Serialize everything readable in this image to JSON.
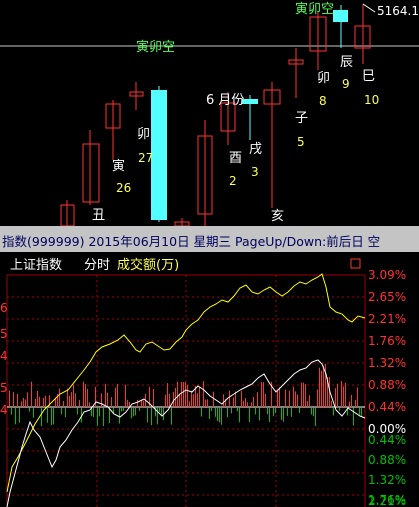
{
  "kline": {
    "price_label": "5164.1",
    "labels": {
      "top_yin_mao_kong": "寅卯空",
      "mid_yin_mao_kong": "寅卯空",
      "chou": "丑",
      "yin": "寅",
      "yin_num": "26",
      "mao_left": "卯",
      "mao_left_num": "27",
      "hai": "亥",
      "month6": "6 月份",
      "you": "酉",
      "you_num": "2",
      "xu": "戌",
      "xu_num": "3",
      "zi": "子",
      "zi_num": "5",
      "mao_right": "卯",
      "mao_right_num": "8",
      "chen": "辰",
      "chen_num": "9",
      "si": "巳",
      "si_num": "10"
    }
  },
  "infobar": {
    "text": "指数(999999) 2015年06月10日 星期三 PageUp/Down:前后日 空"
  },
  "intraday": {
    "index_name": "上证指数",
    "mode": "分时",
    "volume_label": "成交额(万)",
    "pct_labels_up": [
      "3.09%",
      "2.65%",
      "2.21%",
      "1.76%",
      "1.32%",
      "0.88%",
      "0.44%"
    ],
    "zero_label": "0.00%",
    "pct_labels_down": [
      "0.44%",
      "0.88%",
      "1.32%",
      "1.76%",
      "2.21%"
    ],
    "left_fragments": [
      "6",
      "5",
      "4",
      "5",
      "4"
    ]
  },
  "colors": {
    "up_red": "#ff3232",
    "down_cyan": "#54ffff",
    "down_green": "#00c000",
    "label_yellow": "#ffff54",
    "label_white": "#ffffff",
    "label_green": "#54ff54",
    "line_white": "#ffffff",
    "line_yellow": "#ffff00",
    "grid_red": "#a00000"
  }
}
